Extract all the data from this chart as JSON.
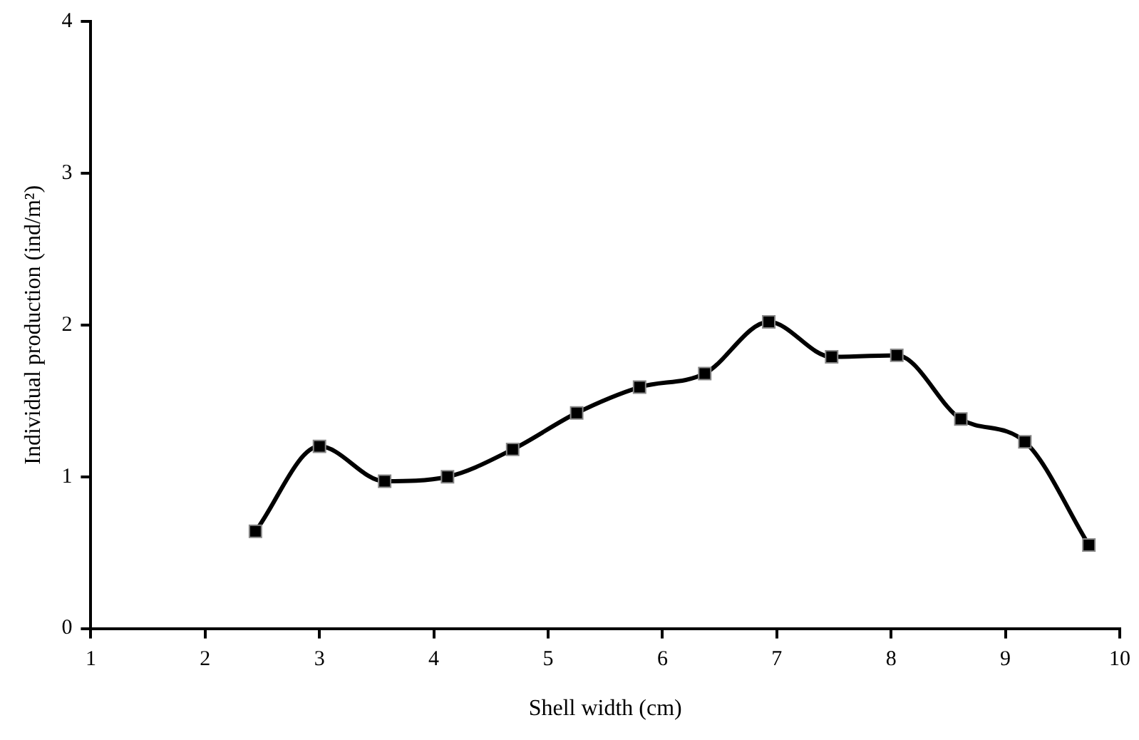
{
  "chart_data": {
    "type": "line",
    "xlabel": "Shell width (cm)",
    "ylabel": "Individual production (ind/m²)",
    "x": [
      2.44,
      3.0,
      3.57,
      4.12,
      4.69,
      5.25,
      5.8,
      6.37,
      6.93,
      7.48,
      8.05,
      8.61,
      9.17,
      9.73
    ],
    "series": [
      {
        "color": "#000000",
        "values": [
          0.64,
          1.2,
          0.97,
          1.0,
          1.18,
          1.42,
          1.59,
          1.68,
          2.02,
          1.79,
          1.8,
          1.38,
          1.23,
          0.55
        ]
      }
    ],
    "xlim": [
      1,
      10
    ],
    "xticks": [
      1,
      2,
      3,
      4,
      5,
      6,
      7,
      8,
      9,
      10
    ],
    "ylim": [
      0,
      4
    ],
    "yticks": [
      0,
      1,
      2,
      3,
      4
    ],
    "grid": false,
    "legend": false,
    "marker": "square",
    "line_style": "solid"
  }
}
